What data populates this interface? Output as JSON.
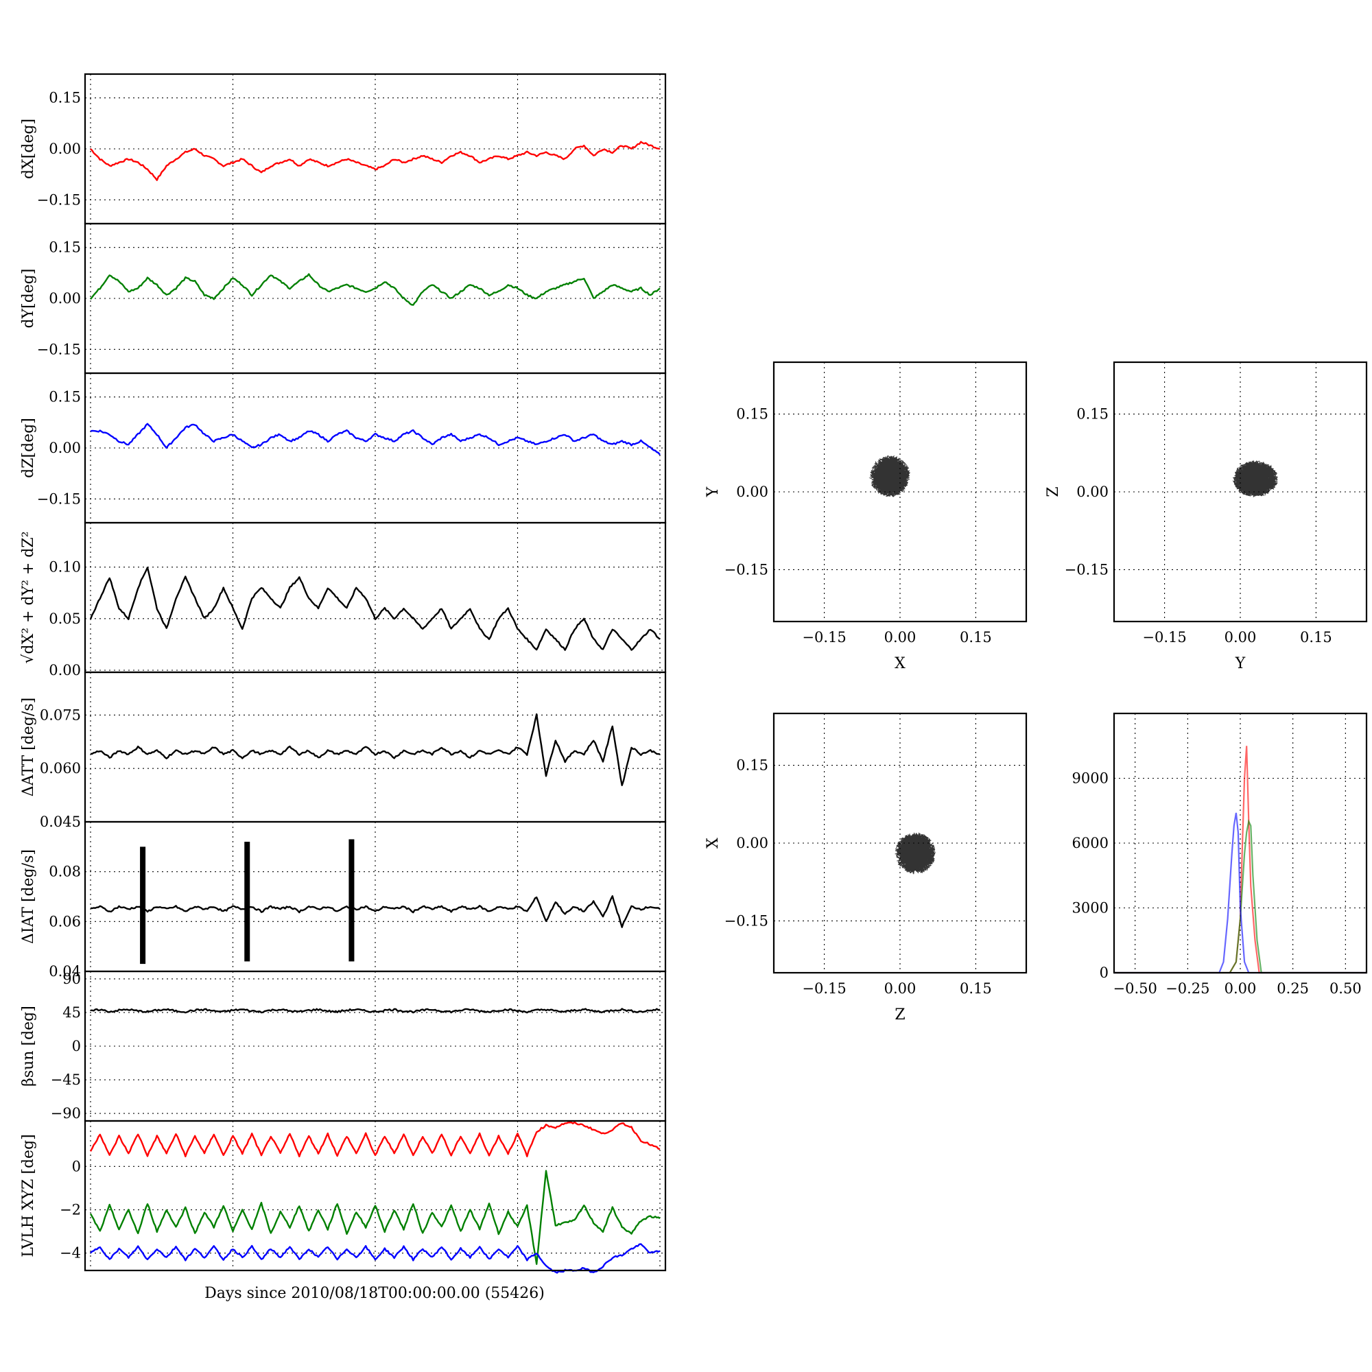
{
  "xlabel": "Days since 2010/08/18T00:00:00.00 (55426)",
  "chart_data": [
    {
      "id": "dx",
      "type": "line",
      "ylabel": "dX[deg]",
      "yticks": [
        "0.15",
        "0.00",
        "−0.15"
      ],
      "ytick_values": [
        0.15,
        0.0,
        -0.15
      ],
      "ylim": [
        -0.22,
        0.22
      ],
      "xlim": [
        0,
        60
      ],
      "grid": true,
      "series": [
        {
          "color": "#ff0000",
          "values": [
            0.0,
            -0.03,
            -0.05,
            -0.04,
            -0.03,
            -0.04,
            -0.06,
            -0.09,
            -0.05,
            -0.03,
            -0.01,
            0.0,
            -0.02,
            -0.03,
            -0.05,
            -0.04,
            -0.03,
            -0.05,
            -0.07,
            -0.05,
            -0.04,
            -0.03,
            -0.05,
            -0.03,
            -0.04,
            -0.05,
            -0.04,
            -0.03,
            -0.04,
            -0.05,
            -0.06,
            -0.05,
            -0.03,
            -0.04,
            -0.03,
            -0.02,
            -0.03,
            -0.04,
            -0.02,
            -0.01,
            -0.02,
            -0.04,
            -0.03,
            -0.02,
            -0.03,
            -0.02,
            -0.01,
            -0.02,
            -0.01,
            -0.02,
            -0.03,
            0.0,
            0.01,
            -0.02,
            0.0,
            -0.01,
            0.01,
            0.0,
            0.02,
            0.01,
            0.0
          ]
        }
      ]
    },
    {
      "id": "dy",
      "type": "line",
      "ylabel": "dY[deg]",
      "yticks": [
        "0.15",
        "0.00",
        "−0.15"
      ],
      "ytick_values": [
        0.15,
        0.0,
        -0.15
      ],
      "ylim": [
        -0.22,
        0.22
      ],
      "xlim": [
        0,
        60
      ],
      "grid": true,
      "series": [
        {
          "color": "#008000",
          "values": [
            0.0,
            0.03,
            0.07,
            0.05,
            0.02,
            0.03,
            0.06,
            0.04,
            0.01,
            0.03,
            0.06,
            0.05,
            0.01,
            0.0,
            0.03,
            0.06,
            0.04,
            0.01,
            0.04,
            0.07,
            0.05,
            0.03,
            0.05,
            0.07,
            0.04,
            0.02,
            0.03,
            0.04,
            0.03,
            0.02,
            0.03,
            0.05,
            0.03,
            0.0,
            -0.02,
            0.02,
            0.04,
            0.02,
            0.0,
            0.02,
            0.04,
            0.03,
            0.01,
            0.02,
            0.04,
            0.03,
            0.01,
            0.0,
            0.02,
            0.03,
            0.04,
            0.05,
            0.06,
            0.0,
            0.02,
            0.04,
            0.03,
            0.02,
            0.03,
            0.01,
            0.03
          ]
        }
      ]
    },
    {
      "id": "dz",
      "type": "line",
      "ylabel": "dZ[deg]",
      "yticks": [
        "0.15",
        "0.00",
        "−0.15"
      ],
      "ytick_values": [
        0.15,
        0.0,
        -0.15
      ],
      "ylim": [
        -0.22,
        0.22
      ],
      "xlim": [
        0,
        60
      ],
      "grid": true,
      "series": [
        {
          "color": "#0000ff",
          "values": [
            0.05,
            0.05,
            0.04,
            0.02,
            0.01,
            0.04,
            0.07,
            0.04,
            0.0,
            0.03,
            0.06,
            0.07,
            0.04,
            0.02,
            0.03,
            0.04,
            0.02,
            0.0,
            0.01,
            0.03,
            0.04,
            0.02,
            0.03,
            0.05,
            0.04,
            0.02,
            0.04,
            0.05,
            0.03,
            0.02,
            0.04,
            0.03,
            0.02,
            0.04,
            0.05,
            0.03,
            0.01,
            0.03,
            0.04,
            0.02,
            0.03,
            0.04,
            0.03,
            0.01,
            0.02,
            0.03,
            0.02,
            0.01,
            0.02,
            0.03,
            0.04,
            0.02,
            0.03,
            0.04,
            0.02,
            0.01,
            0.02,
            0.01,
            0.02,
            0.0,
            -0.02
          ]
        }
      ]
    },
    {
      "id": "mag",
      "type": "line",
      "ylabel": "√dX² + dY² + dZ²",
      "yticks": [
        "0.10",
        "0.05",
        "0.00"
      ],
      "ytick_values": [
        0.1,
        0.05,
        0.0
      ],
      "ylim": [
        -0.002,
        0.143
      ],
      "xlim": [
        0,
        60
      ],
      "grid": true,
      "series": [
        {
          "color": "#000000",
          "values": [
            0.05,
            0.07,
            0.09,
            0.06,
            0.05,
            0.08,
            0.1,
            0.06,
            0.04,
            0.07,
            0.09,
            0.07,
            0.05,
            0.06,
            0.08,
            0.06,
            0.04,
            0.07,
            0.08,
            0.07,
            0.06,
            0.08,
            0.09,
            0.07,
            0.06,
            0.08,
            0.07,
            0.06,
            0.08,
            0.07,
            0.05,
            0.06,
            0.05,
            0.06,
            0.05,
            0.04,
            0.05,
            0.06,
            0.04,
            0.05,
            0.06,
            0.04,
            0.03,
            0.05,
            0.06,
            0.04,
            0.03,
            0.02,
            0.04,
            0.03,
            0.02,
            0.04,
            0.05,
            0.03,
            0.02,
            0.04,
            0.03,
            0.02,
            0.03,
            0.04,
            0.03
          ]
        }
      ]
    },
    {
      "id": "datt",
      "type": "line",
      "ylabel": "ΔATT [deg/s]",
      "yticks": [
        "0.075",
        "0.060",
        "0.045"
      ],
      "ytick_values": [
        0.075,
        0.06,
        0.045
      ],
      "ylim": [
        0.045,
        0.087
      ],
      "xlim": [
        0,
        60
      ],
      "grid": true,
      "series": [
        {
          "color": "#000000",
          "values": [
            0.064,
            0.065,
            0.063,
            0.065,
            0.064,
            0.066,
            0.064,
            0.065,
            0.063,
            0.065,
            0.064,
            0.065,
            0.064,
            0.066,
            0.064,
            0.065,
            0.063,
            0.065,
            0.064,
            0.065,
            0.064,
            0.066,
            0.064,
            0.065,
            0.063,
            0.065,
            0.064,
            0.065,
            0.064,
            0.066,
            0.064,
            0.065,
            0.063,
            0.065,
            0.064,
            0.065,
            0.064,
            0.066,
            0.064,
            0.065,
            0.063,
            0.065,
            0.064,
            0.065,
            0.064,
            0.066,
            0.064,
            0.075,
            0.058,
            0.068,
            0.062,
            0.065,
            0.064,
            0.068,
            0.062,
            0.072,
            0.055,
            0.066,
            0.064,
            0.065,
            0.064
          ]
        }
      ]
    },
    {
      "id": "diat",
      "type": "line",
      "ylabel": "ΔIAT [deg/s]",
      "yticks": [
        "0.08",
        "0.06",
        "0.04"
      ],
      "ytick_values": [
        0.08,
        0.06,
        0.04
      ],
      "ylim": [
        0.04,
        0.1
      ],
      "xlim": [
        0,
        60
      ],
      "grid": true,
      "series": [
        {
          "color": "#000000",
          "values": [
            0.065,
            0.066,
            0.064,
            0.066,
            0.065,
            0.066,
            0.064,
            0.066,
            0.065,
            0.066,
            0.064,
            0.066,
            0.065,
            0.066,
            0.064,
            0.066,
            0.065,
            0.066,
            0.064,
            0.066,
            0.065,
            0.066,
            0.064,
            0.066,
            0.065,
            0.066,
            0.064,
            0.066,
            0.065,
            0.066,
            0.064,
            0.066,
            0.065,
            0.066,
            0.064,
            0.066,
            0.065,
            0.066,
            0.064,
            0.066,
            0.065,
            0.066,
            0.064,
            0.066,
            0.065,
            0.066,
            0.064,
            0.07,
            0.06,
            0.068,
            0.063,
            0.066,
            0.064,
            0.068,
            0.062,
            0.07,
            0.058,
            0.066,
            0.065,
            0.066,
            0.065
          ]
        }
      ],
      "spikes": [
        {
          "x": 5.5,
          "ymin": 0.043,
          "ymax": 0.09
        },
        {
          "x": 16.5,
          "ymin": 0.044,
          "ymax": 0.092
        },
        {
          "x": 27.5,
          "ymin": 0.044,
          "ymax": 0.093
        }
      ]
    },
    {
      "id": "beta",
      "type": "line",
      "ylabel": "βsun [deg]",
      "yticks": [
        "90",
        "45",
        "0",
        "−45",
        "−90"
      ],
      "ytick_values": [
        90,
        45,
        0,
        -45,
        -90
      ],
      "ylim": [
        -100,
        100
      ],
      "xlim": [
        0,
        60
      ],
      "grid": true,
      "series": [
        {
          "color": "#000000",
          "values": [
            47,
            49,
            46,
            48,
            49,
            47,
            46,
            48,
            49,
            47,
            46,
            48,
            49,
            47,
            46,
            48,
            49,
            47,
            46,
            48,
            49,
            47,
            46,
            48,
            49,
            47,
            46,
            48,
            49,
            47,
            46,
            48,
            49,
            47,
            46,
            48,
            49,
            47,
            46,
            48,
            49,
            47,
            46,
            48,
            49,
            47,
            46,
            48,
            49,
            47,
            46,
            48,
            49,
            47,
            46,
            48,
            49,
            47,
            46,
            48,
            49
          ]
        }
      ]
    },
    {
      "id": "lvlh",
      "type": "line",
      "ylabel": "LVLH XYZ [deg]",
      "yticks": [
        "0",
        "−2",
        "−4"
      ],
      "ytick_values": [
        0,
        -2,
        -4
      ],
      "ylim": [
        -4.8,
        2.1
      ],
      "xlim": [
        0,
        60
      ],
      "grid": true,
      "series": [
        {
          "color": "#ff0000",
          "values": [
            0.7,
            1.5,
            0.5,
            1.4,
            0.6,
            1.5,
            0.5,
            1.4,
            0.6,
            1.5,
            0.5,
            1.4,
            0.6,
            1.5,
            0.5,
            1.4,
            0.6,
            1.5,
            0.5,
            1.4,
            0.6,
            1.5,
            0.5,
            1.4,
            0.6,
            1.5,
            0.5,
            1.4,
            0.6,
            1.5,
            0.5,
            1.4,
            0.6,
            1.5,
            0.5,
            1.4,
            0.6,
            1.5,
            0.5,
            1.4,
            0.6,
            1.5,
            0.5,
            1.4,
            0.6,
            1.5,
            0.5,
            1.6,
            1.9,
            1.8,
            2.0,
            2.0,
            1.9,
            1.7,
            1.5,
            1.7,
            2.0,
            1.8,
            1.2,
            1.0,
            0.8
          ]
        },
        {
          "color": "#008000",
          "values": [
            -2.2,
            -3.0,
            -1.8,
            -2.9,
            -2.0,
            -3.1,
            -1.7,
            -3.0,
            -2.0,
            -2.8,
            -1.9,
            -3.1,
            -2.1,
            -2.8,
            -1.8,
            -3.0,
            -2.0,
            -2.9,
            -1.7,
            -3.1,
            -2.1,
            -2.8,
            -1.8,
            -3.0,
            -2.0,
            -2.9,
            -1.7,
            -3.1,
            -2.1,
            -2.8,
            -1.8,
            -3.0,
            -2.0,
            -2.9,
            -1.7,
            -3.1,
            -2.1,
            -2.8,
            -1.8,
            -3.0,
            -2.0,
            -2.9,
            -1.7,
            -3.1,
            -2.1,
            -2.8,
            -1.8,
            -4.5,
            -0.2,
            -2.7,
            -2.6,
            -2.5,
            -1.8,
            -2.6,
            -3.0,
            -1.9,
            -2.8,
            -3.1,
            -2.5,
            -2.3,
            -2.4
          ]
        },
        {
          "color": "#0000ff",
          "values": [
            -4.0,
            -3.7,
            -4.3,
            -3.8,
            -4.2,
            -3.7,
            -4.3,
            -3.8,
            -4.2,
            -3.7,
            -4.3,
            -3.8,
            -4.2,
            -3.7,
            -4.3,
            -3.8,
            -4.2,
            -3.7,
            -4.3,
            -3.8,
            -4.2,
            -3.7,
            -4.3,
            -3.8,
            -4.2,
            -3.7,
            -4.3,
            -3.8,
            -4.2,
            -3.7,
            -4.3,
            -3.8,
            -4.2,
            -3.7,
            -4.3,
            -3.8,
            -4.2,
            -3.7,
            -4.3,
            -3.8,
            -4.2,
            -3.7,
            -4.3,
            -3.8,
            -4.2,
            -3.7,
            -4.3,
            -4.0,
            -4.6,
            -4.9,
            -4.8,
            -4.8,
            -4.7,
            -4.9,
            -4.6,
            -4.2,
            -4.1,
            -3.8,
            -3.6,
            -4.0,
            -3.9
          ]
        }
      ]
    },
    {
      "id": "xy",
      "type": "scatter",
      "xlabel": "X",
      "ylabel": "Y",
      "ticks": [
        "−0.15",
        "0.00",
        "0.15"
      ],
      "tick_values": [
        -0.15,
        0.0,
        0.15
      ],
      "xlim": [
        -0.25,
        0.25
      ],
      "ylim": [
        -0.25,
        0.25
      ],
      "grid": true,
      "color": "#000000",
      "cx": -0.02,
      "cy": 0.03,
      "rx": 0.04,
      "ry": 0.04
    },
    {
      "id": "yz",
      "type": "scatter",
      "xlabel": "Y",
      "ylabel": "Z",
      "ticks": [
        "−0.15",
        "0.00",
        "0.15"
      ],
      "tick_values": [
        -0.15,
        0.0,
        0.15
      ],
      "xlim": [
        -0.25,
        0.25
      ],
      "ylim": [
        -0.25,
        0.25
      ],
      "grid": true,
      "color": "#000000",
      "cx": 0.03,
      "cy": 0.025,
      "rx": 0.045,
      "ry": 0.035
    },
    {
      "id": "zx",
      "type": "scatter",
      "xlabel": "Z",
      "ylabel": "X",
      "ticks": [
        "−0.15",
        "0.00",
        "0.15"
      ],
      "tick_values": [
        -0.15,
        0.0,
        0.15
      ],
      "xlim": [
        -0.25,
        0.25
      ],
      "ylim": [
        -0.25,
        0.25
      ],
      "grid": true,
      "color": "#000000",
      "cx": 0.03,
      "cy": -0.02,
      "rx": 0.04,
      "ry": 0.04
    },
    {
      "id": "hist",
      "type": "line",
      "xticks": [
        "−0.50",
        "−0.25",
        "0.00",
        "0.25",
        "0.50"
      ],
      "xtick_values": [
        -0.5,
        -0.25,
        0.0,
        0.25,
        0.5
      ],
      "yticks": [
        "9000",
        "6000",
        "3000",
        "0"
      ],
      "ytick_values": [
        9000,
        6000,
        3000,
        0
      ],
      "xlim": [
        -0.6,
        0.6
      ],
      "ylim": [
        0,
        12000
      ],
      "grid": true,
      "series": [
        {
          "color": "#ff0000",
          "x": [
            -0.6,
            -0.05,
            -0.02,
            0.0,
            0.01,
            0.02,
            0.03,
            0.04,
            0.05,
            0.07,
            0.09,
            0.6
          ],
          "values": [
            0,
            0,
            500,
            2500,
            6000,
            9000,
            10500,
            7000,
            4000,
            1500,
            0,
            0
          ]
        },
        {
          "color": "#008000",
          "x": [
            -0.6,
            -0.05,
            -0.02,
            0.0,
            0.02,
            0.03,
            0.04,
            0.05,
            0.06,
            0.08,
            0.1,
            0.6
          ],
          "values": [
            0,
            0,
            500,
            2500,
            5500,
            6500,
            7000,
            6800,
            4500,
            1500,
            0,
            0
          ]
        },
        {
          "color": "#0000ff",
          "x": [
            -0.6,
            -0.1,
            -0.08,
            -0.06,
            -0.04,
            -0.03,
            -0.02,
            -0.01,
            0.0,
            0.02,
            0.04,
            0.6
          ],
          "values": [
            0,
            0,
            500,
            2500,
            5500,
            6800,
            7400,
            6500,
            3000,
            500,
            0,
            0
          ]
        }
      ]
    }
  ]
}
